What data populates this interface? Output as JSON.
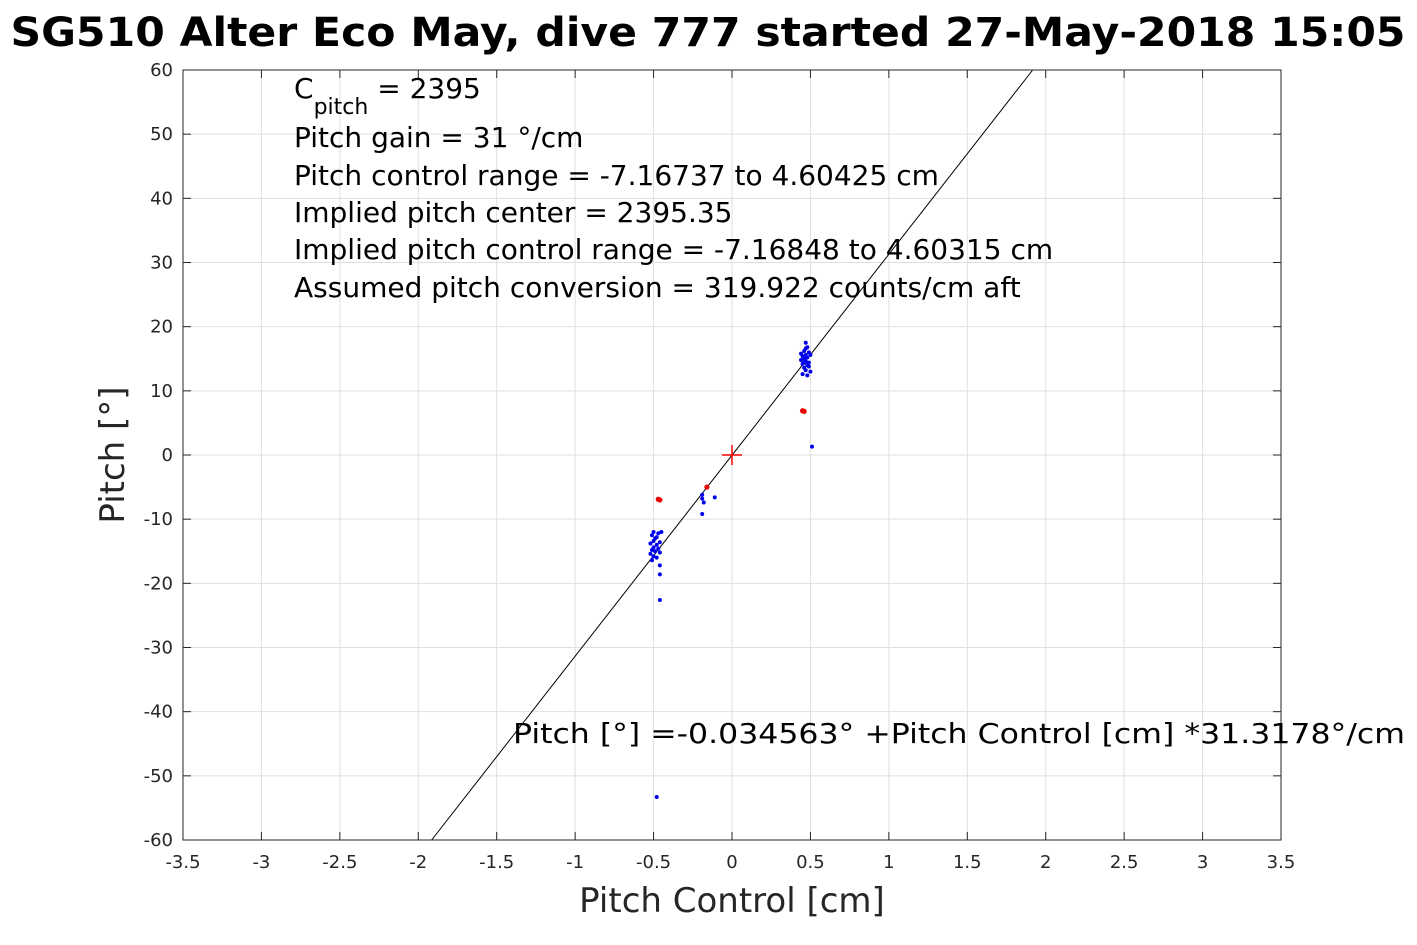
{
  "chart_data": {
    "type": "scatter",
    "title": "SG510 Alter Eco May, dive 777 started 27-May-2018 15:05",
    "xlabel": "Pitch Control [cm]",
    "ylabel": "Pitch [°]",
    "xlim": [
      -3.5,
      3.5
    ],
    "ylim": [
      -60,
      60
    ],
    "xticks": [
      -3.5,
      -3,
      -2.5,
      -2,
      -1.5,
      -1,
      -0.5,
      0,
      0.5,
      1,
      1.5,
      2,
      2.5,
      3,
      3.5
    ],
    "yticks": [
      -60,
      -50,
      -40,
      -30,
      -20,
      -10,
      0,
      10,
      20,
      30,
      40,
      50,
      60
    ],
    "grid": true,
    "colors": {
      "good": "#0000ee",
      "flagged": "#ee0000",
      "fit": "#000000",
      "center": "#ff0000"
    },
    "annotations": {
      "cpitch_base": "C",
      "cpitch_sub": "pitch",
      "cpitch_value": " = 2395",
      "lines": [
        "Pitch gain = 31 °/cm",
        "Pitch control range = -7.16737 to 4.60425 cm",
        "Implied pitch center = 2395.35",
        "Implied pitch control range = -7.16848 to 4.60315 cm",
        "Assumed pitch conversion = 319.922 counts/cm aft"
      ],
      "fit_equation": "Pitch [°] =-0.034563° +Pitch Control [cm] *31.3178°/cm"
    },
    "fit_line": {
      "intercept": -0.034563,
      "slope": 31.3178
    },
    "center_marker": {
      "x": 0,
      "y": 0
    },
    "series": [
      {
        "role": "good",
        "points": [
          [
            0.47,
            17.5
          ],
          [
            0.48,
            16.8
          ],
          [
            0.46,
            16.2
          ],
          [
            0.49,
            16.0
          ],
          [
            0.47,
            15.6
          ],
          [
            0.45,
            15.4
          ],
          [
            0.48,
            15.2
          ],
          [
            0.46,
            15.0
          ],
          [
            0.44,
            14.8
          ],
          [
            0.47,
            14.6
          ],
          [
            0.49,
            14.4
          ],
          [
            0.45,
            14.2
          ],
          [
            0.48,
            14.0
          ],
          [
            0.46,
            13.6
          ],
          [
            0.47,
            13.2
          ],
          [
            0.5,
            13.0
          ],
          [
            0.45,
            12.6
          ],
          [
            0.48,
            12.4
          ],
          [
            0.44,
            15.8
          ],
          [
            0.5,
            15.6
          ],
          [
            0.46,
            14.4
          ],
          [
            0.47,
            16.6
          ],
          [
            0.49,
            13.8
          ],
          [
            0.51,
            1.3
          ],
          [
            -0.5,
            -12.0
          ],
          [
            -0.51,
            -12.5
          ],
          [
            -0.49,
            -13.0
          ],
          [
            -0.5,
            -13.4
          ],
          [
            -0.52,
            -13.8
          ],
          [
            -0.48,
            -14.0
          ],
          [
            -0.5,
            -14.4
          ],
          [
            -0.51,
            -14.8
          ],
          [
            -0.49,
            -15.0
          ],
          [
            -0.52,
            -15.4
          ],
          [
            -0.5,
            -15.8
          ],
          [
            -0.48,
            -16.0
          ],
          [
            -0.51,
            -16.4
          ],
          [
            -0.47,
            -12.2
          ],
          [
            -0.46,
            -13.6
          ],
          [
            -0.47,
            -14.6
          ],
          [
            -0.46,
            -15.2
          ],
          [
            -0.45,
            -12.0
          ],
          [
            -0.48,
            -12.8
          ],
          [
            -0.46,
            -17.2
          ],
          [
            -0.46,
            -18.6
          ],
          [
            -0.46,
            -22.6
          ],
          [
            -0.48,
            -53.3
          ],
          [
            -0.19,
            -6.2
          ],
          [
            -0.19,
            -6.8
          ],
          [
            -0.18,
            -7.4
          ],
          [
            -0.19,
            -9.2
          ],
          [
            -0.11,
            -6.6
          ]
        ]
      },
      {
        "role": "flagged",
        "points": [
          [
            0.45,
            6.9
          ],
          [
            0.46,
            6.8
          ],
          [
            -0.47,
            -6.9
          ],
          [
            -0.46,
            -7.0
          ],
          [
            -0.16,
            -5.0
          ]
        ]
      }
    ]
  }
}
